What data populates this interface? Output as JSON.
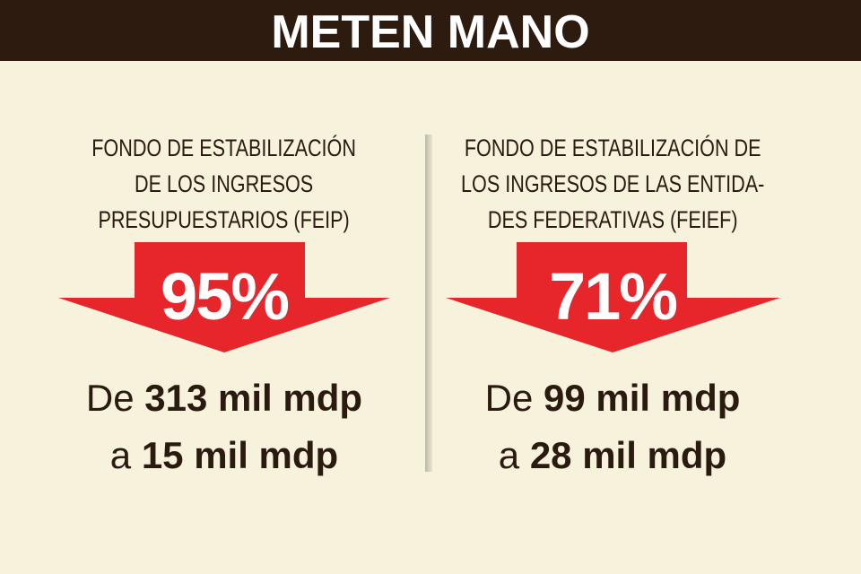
{
  "header": {
    "title": "METEN MANO"
  },
  "panels": [
    {
      "title_lines": [
        "FONDO DE ESTABILIZACIÓN",
        "DE LOS INGRESOS",
        "PRESUPUESTARIOS (FEIP)"
      ],
      "percent": "95%",
      "from_prefix": "De",
      "from": "313 mil mdp",
      "to_prefix": "a",
      "to": "15 mil mdp"
    },
    {
      "title_lines": [
        "FONDO DE ESTABILIZACIÓN DE",
        "LOS INGRESOS DE LAS ENTIDA-",
        "DES FEDERATIVAS (FEIEF)"
      ],
      "percent": "71%",
      "from_prefix": "De",
      "from": "99 mil mdp",
      "to_prefix": "a",
      "to": "28 mil mdp"
    }
  ]
}
